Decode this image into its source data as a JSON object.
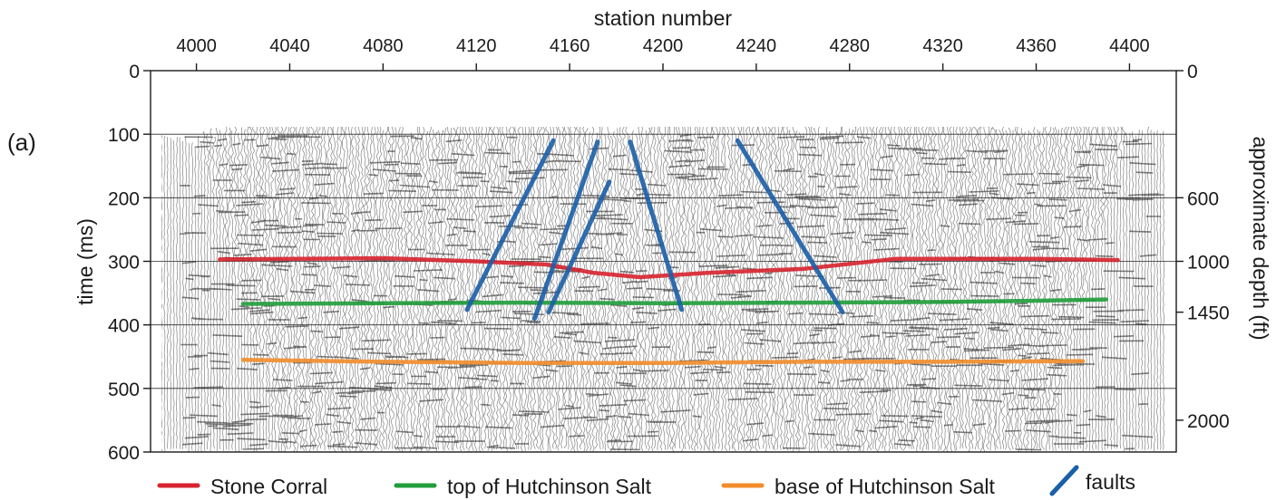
{
  "panel_label": "(a)",
  "chart_data": {
    "type": "line",
    "title": "",
    "xlabel": "station number",
    "ylabel_left": "time (ms)",
    "ylabel_right": "approximate depth (ft)",
    "xlim": [
      3985,
      4415
    ],
    "ylim": [
      0,
      600
    ],
    "y_inverted": true,
    "x_ticks": [
      4000,
      4040,
      4080,
      4120,
      4160,
      4200,
      4240,
      4280,
      4320,
      4360,
      4400
    ],
    "y_ticks": [
      0,
      100,
      200,
      300,
      400,
      500,
      600
    ],
    "depth_ticks": [
      {
        "time": 0,
        "label": "0"
      },
      {
        "time": 200,
        "label": "600"
      },
      {
        "time": 300,
        "label": "1000"
      },
      {
        "time": 380,
        "label": "1450"
      },
      {
        "time": 550,
        "label": "2000"
      }
    ],
    "grid": true,
    "background": "seismic wiggle traces",
    "series": [
      {
        "name": "Stone Corral",
        "color": "#d8232f",
        "x": [
          4010,
          4080,
          4120,
          4150,
          4170,
          4190,
          4220,
          4260,
          4300,
          4360,
          4395
        ],
        "y": [
          297,
          295,
          300,
          305,
          318,
          325,
          318,
          312,
          296,
          296,
          298
        ]
      },
      {
        "name": "top of Hutchinson Salt",
        "color": "#1f9d3a",
        "x": [
          4020,
          4080,
          4140,
          4200,
          4260,
          4320,
          4360,
          4390
        ],
        "y": [
          367,
          366,
          365,
          366,
          365,
          364,
          362,
          360
        ]
      },
      {
        "name": "base of Hutchinson Salt",
        "color": "#f28c2a",
        "x": [
          4020,
          4080,
          4140,
          4200,
          4260,
          4320,
          4380
        ],
        "y": [
          455,
          458,
          460,
          460,
          458,
          458,
          457
        ]
      }
    ],
    "faults": {
      "name": "faults",
      "color": "#1a5fa8",
      "segments": [
        [
          [
            4153,
            110
          ],
          [
            4116,
            376
          ]
        ],
        [
          [
            4172,
            112
          ],
          [
            4145,
            390
          ]
        ],
        [
          [
            4177,
            175
          ],
          [
            4151,
            380
          ]
        ],
        [
          [
            4186,
            112
          ],
          [
            4208,
            376
          ]
        ],
        [
          [
            4232,
            110
          ],
          [
            4277,
            380
          ]
        ]
      ]
    },
    "legend": {
      "position": "bottom",
      "entries": [
        "Stone Corral",
        "top of Hutchinson Salt",
        "base of Hutchinson Salt",
        "faults"
      ]
    }
  }
}
